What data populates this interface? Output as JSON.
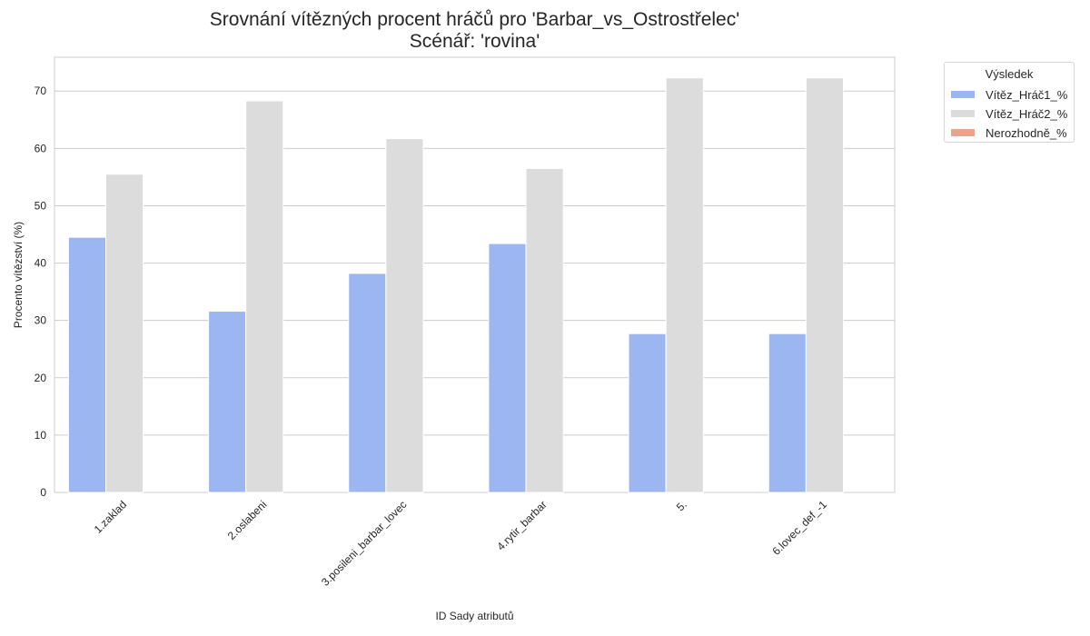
{
  "chart_data": {
    "type": "bar",
    "title": "Srovnání vítězných procent hráčů pro 'Barbar_vs_Ostrostřelec'",
    "subtitle": "Scénář: 'rovina'",
    "xlabel": "ID Sady atributů",
    "ylabel": "Procento vítězství (%)",
    "categories": [
      "1.zaklad",
      "2.oslabeni",
      "3.posileni_barbar_lovec",
      "4.rytir_barbar",
      "5.",
      "6.lovec_def_-1"
    ],
    "series": [
      {
        "name": "Vítěz_Hráč1_%",
        "color": "#9bb6f0",
        "values": [
          44.5,
          31.6,
          38.2,
          43.4,
          27.7,
          27.7
        ]
      },
      {
        "name": "Vítěz_Hráč2_%",
        "color": "#dcdcdc",
        "values": [
          55.5,
          68.3,
          61.7,
          56.5,
          72.3,
          72.3
        ]
      },
      {
        "name": "Nerozhodně_%",
        "color": "#eba48a",
        "values": [
          0,
          0,
          0,
          0,
          0,
          0
        ]
      }
    ],
    "ylim": [
      0,
      75.9
    ],
    "yticks": [
      0,
      10,
      20,
      30,
      40,
      50,
      60,
      70
    ],
    "grid": true,
    "legend": {
      "title": "Výsledek",
      "position": "outside-top-right"
    }
  }
}
